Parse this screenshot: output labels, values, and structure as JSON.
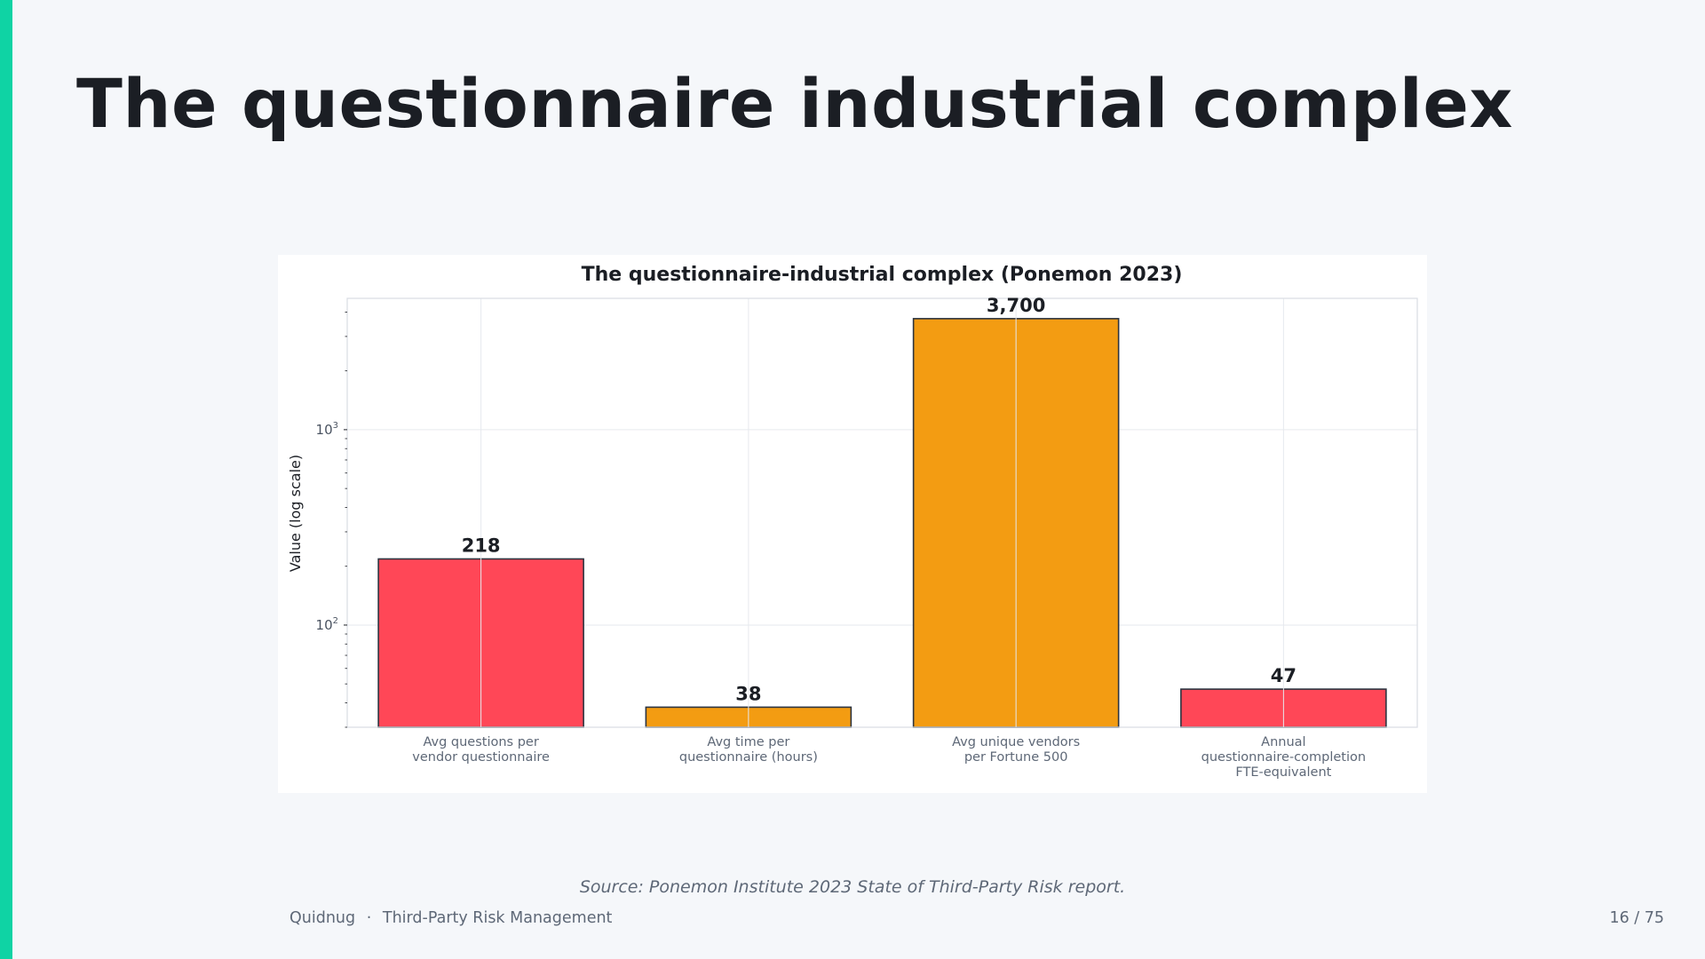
{
  "slide": {
    "title": "The questionnaire industrial complex",
    "source_note": "Source: Ponemon Institute 2023 State of Third-Party Risk report.",
    "footer": {
      "brand": "Quidnug",
      "separator": "·",
      "section": "Third-Party Risk Management",
      "page": "16 / 75"
    }
  },
  "theme": {
    "accent": "#0fd3a4",
    "background": "#f5f7fa",
    "title_color": "#1b1e24",
    "muted_text": "#5e6877"
  },
  "chart_data": {
    "type": "bar",
    "title": "The questionnaire-industrial complex (Ponemon 2023)",
    "xlabel": "",
    "ylabel": "Value (log scale)",
    "yscale": "log",
    "ylim": [
      30,
      4700
    ],
    "yticks": [
      {
        "value": 100,
        "base": "10",
        "exp": "2"
      },
      {
        "value": 1000,
        "base": "10",
        "exp": "3"
      }
    ],
    "grid": true,
    "categories": [
      [
        "Avg questions per",
        "vendor questionnaire"
      ],
      [
        "Avg time per",
        "questionnaire (hours)"
      ],
      [
        "Avg unique vendors",
        "per Fortune 500"
      ],
      [
        "Annual",
        "questionnaire-completion",
        "FTE-equivalent"
      ]
    ],
    "values": [
      218,
      38,
      3700,
      47
    ],
    "data_labels": [
      "218",
      "38",
      "3,700",
      "47"
    ],
    "colors": [
      "#ff4757",
      "#f39c12",
      "#f39c12",
      "#ff4757"
    ]
  }
}
